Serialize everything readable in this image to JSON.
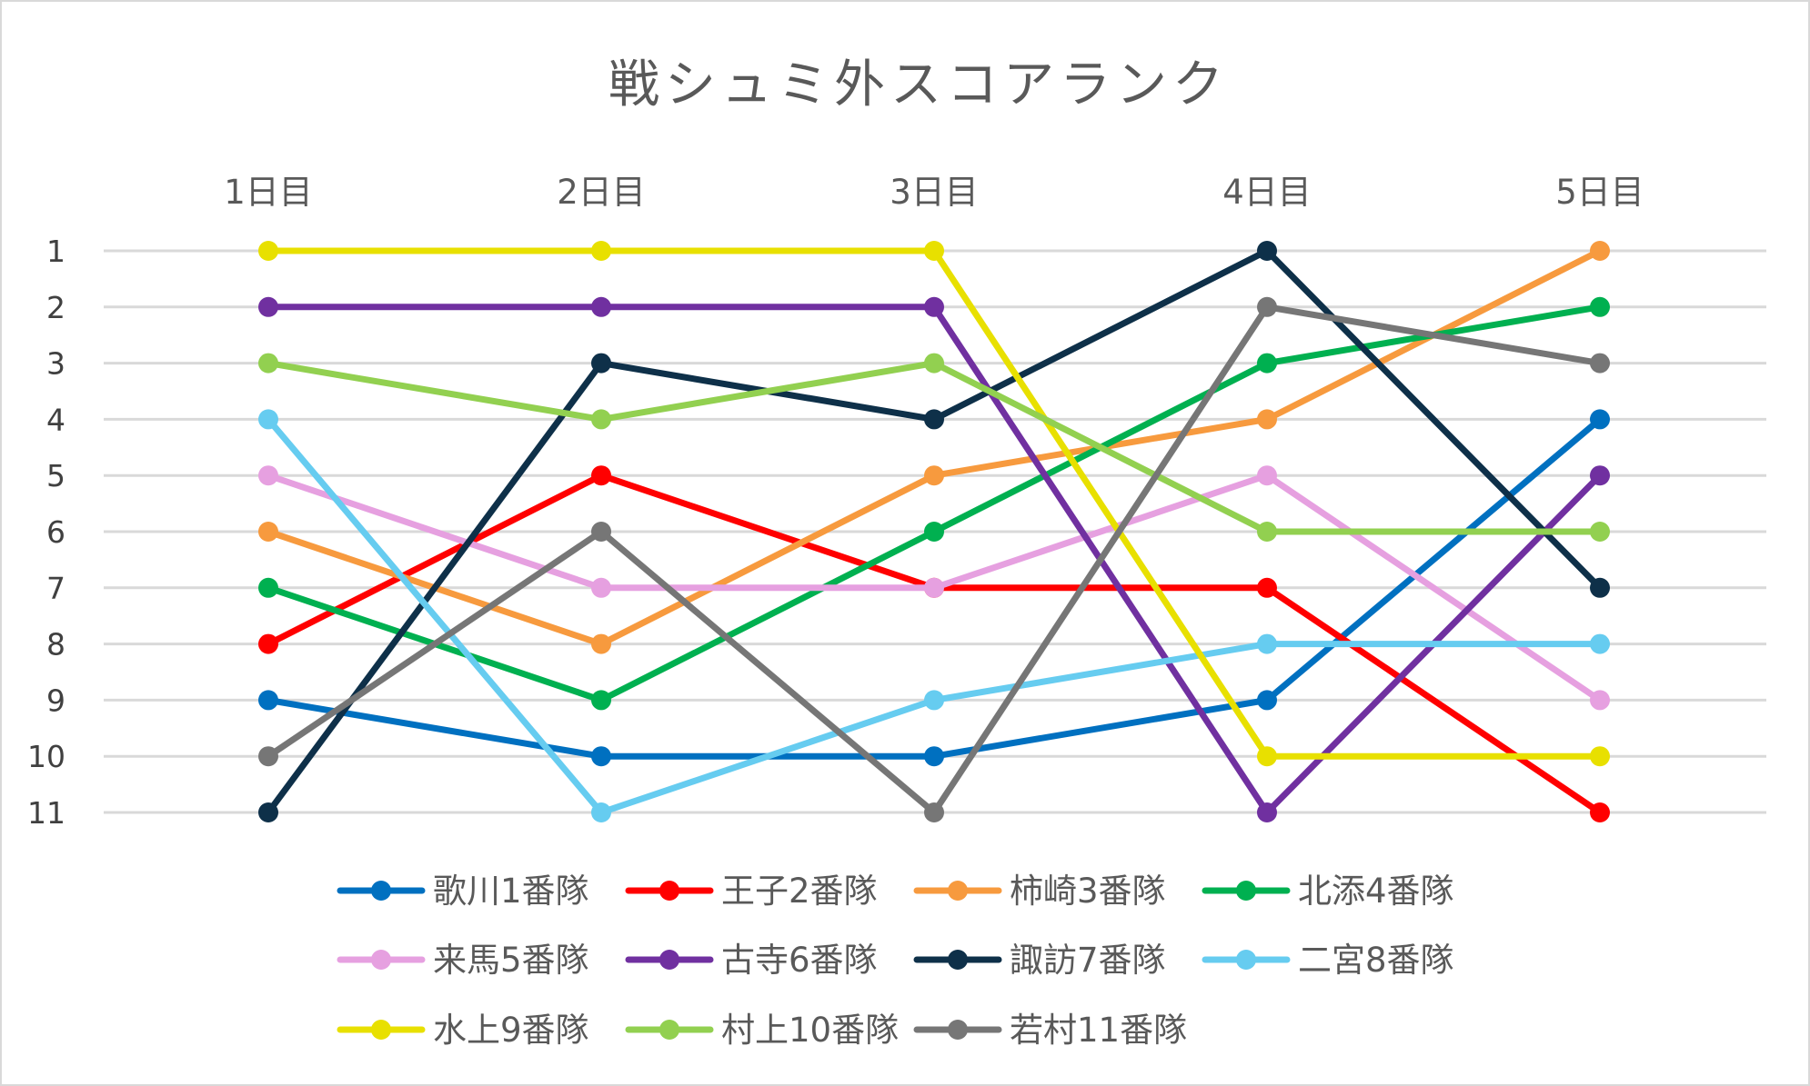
{
  "chart_data": {
    "type": "line",
    "title": "戦シュミ外スコアランク",
    "xlabel": "",
    "ylabel": "",
    "categories": [
      "1日目",
      "2日目",
      "3日目",
      "4日目",
      "5日目"
    ],
    "y_ticks": [
      "1",
      "2",
      "3",
      "4",
      "5",
      "6",
      "7",
      "8",
      "9",
      "10",
      "11"
    ],
    "ylim": [
      1,
      11
    ],
    "y_reversed": true,
    "x_axis_position": "top",
    "grid": true,
    "legend_position": "bottom",
    "series": [
      {
        "name": "歌川1番隊",
        "color": "#0070c0",
        "values": [
          9,
          10,
          10,
          9,
          4
        ]
      },
      {
        "name": "王子2番隊",
        "color": "#ff0000",
        "values": [
          8,
          5,
          7,
          7,
          11
        ]
      },
      {
        "name": "柿崎3番隊",
        "color": "#f79a3e",
        "values": [
          6,
          8,
          5,
          4,
          1
        ]
      },
      {
        "name": "北添4番隊",
        "color": "#00b050",
        "values": [
          7,
          9,
          6,
          3,
          2
        ]
      },
      {
        "name": "来馬5番隊",
        "color": "#e6a0e0",
        "values": [
          5,
          7,
          7,
          5,
          9
        ]
      },
      {
        "name": "古寺6番隊",
        "color": "#7030a0",
        "values": [
          2,
          2,
          2,
          11,
          5
        ]
      },
      {
        "name": "諏訪7番隊",
        "color": "#0e3049",
        "values": [
          11,
          3,
          4,
          1,
          7
        ]
      },
      {
        "name": "二宮8番隊",
        "color": "#66ccf0",
        "values": [
          4,
          11,
          9,
          8,
          8
        ]
      },
      {
        "name": "水上9番隊",
        "color": "#e8e000",
        "values": [
          1,
          1,
          1,
          10,
          10
        ]
      },
      {
        "name": "村上10番隊",
        "color": "#92d050",
        "values": [
          3,
          4,
          3,
          6,
          6
        ]
      },
      {
        "name": "若村11番隊",
        "color": "#767676",
        "values": [
          10,
          6,
          11,
          2,
          3
        ]
      }
    ]
  }
}
